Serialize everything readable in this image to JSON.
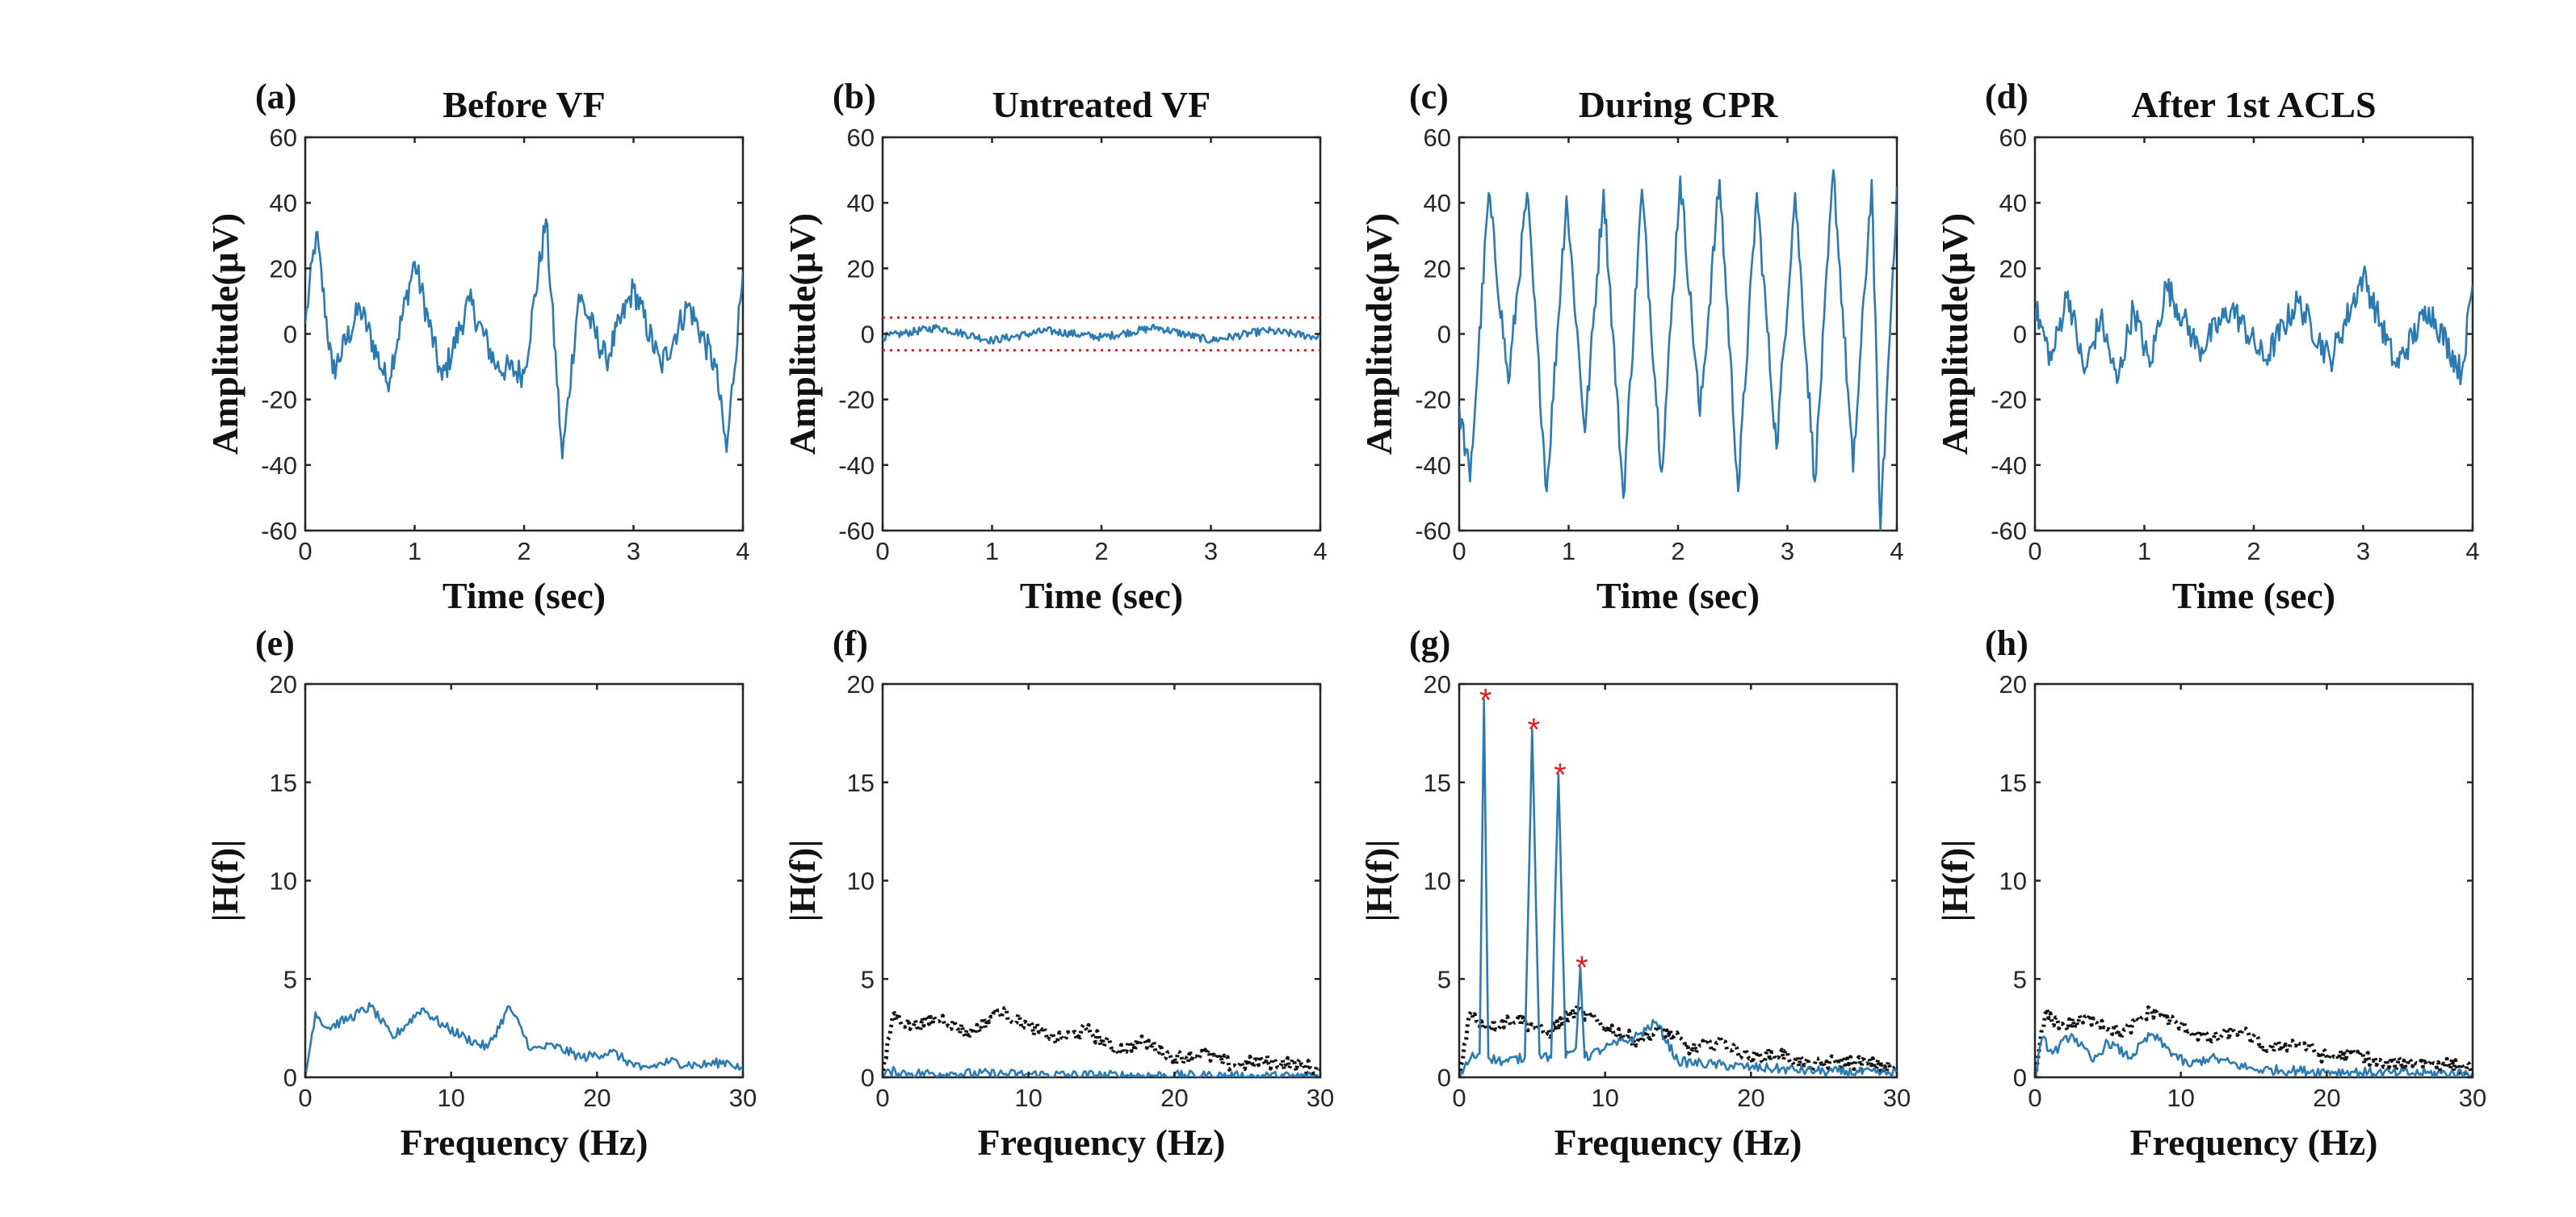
{
  "colors": {
    "signal": "#2a7ab4",
    "threshold": "#e41a1c",
    "background_spectrum": "#111111",
    "peak_marker": "#e41a1c"
  },
  "chart_data": [
    {
      "id": "a",
      "type": "line",
      "panel_label": "(a)",
      "title": "Before VF",
      "xlabel": "Time (sec)",
      "ylabel": "Amplitude(μV)",
      "xlim": [
        0,
        4
      ],
      "ylim": [
        -60,
        60
      ],
      "xticks": [
        "0",
        "1",
        "2",
        "3",
        "4"
      ],
      "yticks": [
        "-60",
        "-40",
        "-20",
        "0",
        "20",
        "40",
        "60"
      ],
      "series": [
        {
          "name": "ECG before VF",
          "style": "signal",
          "x": [
            0,
            0.1,
            0.25,
            0.5,
            0.75,
            1.0,
            1.25,
            1.5,
            1.75,
            2.0,
            2.2,
            2.35,
            2.5,
            2.75,
            3.0,
            3.25,
            3.5,
            3.75,
            3.85,
            4.0
          ],
          "y": [
            3,
            31,
            -12,
            8,
            -15,
            22,
            -14,
            10,
            -10,
            -12,
            35,
            -38,
            12,
            -8,
            14,
            -10,
            9,
            -10,
            -36,
            19
          ]
        }
      ]
    },
    {
      "id": "b",
      "type": "line",
      "panel_label": "(b)",
      "title": "Untreated VF",
      "xlabel": "Time (sec)",
      "ylabel": "Amplitude(μV)",
      "xlim": [
        0,
        4
      ],
      "ylim": [
        -60,
        60
      ],
      "xticks": [
        "0",
        "1",
        "2",
        "3",
        "4"
      ],
      "yticks": [
        "-60",
        "-40",
        "-20",
        "0",
        "20",
        "40",
        "60"
      ],
      "series": [
        {
          "name": "Untreated VF",
          "style": "signal",
          "x": [
            0,
            0.5,
            1.0,
            1.5,
            2.0,
            2.5,
            3.0,
            3.5,
            4.0
          ],
          "y": [
            -1,
            2,
            -2,
            1,
            -1,
            2,
            -2,
            1,
            -1
          ]
        }
      ],
      "reference_lines": [
        {
          "name": "upper threshold",
          "y": 5
        },
        {
          "name": "lower threshold",
          "y": -5
        }
      ]
    },
    {
      "id": "c",
      "type": "line",
      "panel_label": "(c)",
      "title": "During CPR",
      "xlabel": "Time (sec)",
      "ylabel": "Amplitude(μV)",
      "xlim": [
        0,
        4
      ],
      "ylim": [
        -60,
        60
      ],
      "xticks": [
        "0",
        "1",
        "2",
        "3",
        "4"
      ],
      "yticks": [
        "-60",
        "-40",
        "-20",
        "0",
        "20",
        "40",
        "60"
      ],
      "series": [
        {
          "name": "ECG during CPR",
          "style": "signal",
          "x": [
            0,
            0.1,
            0.27,
            0.45,
            0.62,
            0.8,
            0.98,
            1.15,
            1.32,
            1.5,
            1.67,
            1.85,
            2.02,
            2.2,
            2.38,
            2.55,
            2.72,
            2.9,
            3.07,
            3.25,
            3.42,
            3.6,
            3.77,
            3.85,
            4.0
          ],
          "y": [
            -22,
            -45,
            43,
            -15,
            43,
            -48,
            42,
            -30,
            44,
            -50,
            44,
            -42,
            48,
            -25,
            47,
            -48,
            43,
            -35,
            43,
            -45,
            50,
            -42,
            47,
            -60,
            45
          ]
        }
      ]
    },
    {
      "id": "d",
      "type": "line",
      "panel_label": "(d)",
      "title": "After 1st ACLS",
      "xlabel": "Time (sec)",
      "ylabel": "Amplitude(μV)",
      "xlim": [
        0,
        4
      ],
      "ylim": [
        -60,
        60
      ],
      "xticks": [
        "0",
        "1",
        "2",
        "3",
        "4"
      ],
      "yticks": [
        "-60",
        "-40",
        "-20",
        "0",
        "20",
        "40",
        "60"
      ],
      "series": [
        {
          "name": "ECG after 1st ACLS",
          "style": "signal",
          "x": [
            0,
            0.15,
            0.3,
            0.45,
            0.6,
            0.75,
            0.9,
            1.05,
            1.2,
            1.35,
            1.5,
            1.8,
            2.1,
            2.4,
            2.7,
            3.0,
            3.3,
            3.6,
            3.9,
            4.0
          ],
          "y": [
            8,
            -8,
            13,
            -12,
            5,
            -15,
            8,
            -10,
            15,
            5,
            -5,
            8,
            -8,
            10,
            -8,
            18,
            -10,
            8,
            -12,
            15
          ]
        }
      ]
    },
    {
      "id": "e",
      "type": "line",
      "panel_label": "(e)",
      "title": "",
      "xlabel": "Frequency (Hz)",
      "ylabel": "|H(f)|",
      "xlim": [
        0,
        30
      ],
      "ylim": [
        0,
        20
      ],
      "xticks": [
        "0",
        "10",
        "20",
        "30"
      ],
      "yticks": [
        "0",
        "5",
        "10",
        "15",
        "20"
      ],
      "series": [
        {
          "name": "Spectrum before VF",
          "style": "signal",
          "x": [
            0,
            0.7,
            1.5,
            3,
            4.5,
            6,
            8,
            9.5,
            11,
            12.5,
            14,
            15.5,
            17,
            19,
            21,
            23,
            25,
            27,
            29,
            30
          ],
          "y": [
            0,
            3.3,
            2.5,
            3.0,
            3.6,
            2.0,
            3.5,
            2.6,
            2.0,
            1.5,
            3.6,
            1.4,
            1.6,
            1.0,
            1.3,
            0.4,
            0.8,
            0.6,
            0.8,
            0.4
          ]
        }
      ]
    },
    {
      "id": "f",
      "type": "line",
      "panel_label": "(f)",
      "title": "",
      "xlabel": "Frequency (Hz)",
      "ylabel": "|H(f)|",
      "xlim": [
        0,
        30
      ],
      "ylim": [
        0,
        20
      ],
      "xticks": [
        "0",
        "10",
        "20",
        "30"
      ],
      "yticks": [
        "0",
        "5",
        "10",
        "15",
        "20"
      ],
      "series": [
        {
          "name": "Untreated VF spectrum",
          "style": "signal",
          "x": [
            0,
            0.5,
            2,
            5,
            10,
            15,
            20,
            25,
            30
          ],
          "y": [
            0,
            0.3,
            0.2,
            0.2,
            0.15,
            0.1,
            0.1,
            0.05,
            0.05
          ]
        },
        {
          "name": "Reference spectrum",
          "style": "dotted",
          "x": [
            0,
            0.7,
            2,
            4,
            6,
            8,
            10,
            12,
            14,
            16,
            18,
            20,
            22,
            24,
            26,
            28,
            30
          ],
          "y": [
            0,
            3.2,
            2.6,
            3.0,
            2.2,
            3.4,
            2.6,
            1.9,
            2.4,
            1.4,
            1.8,
            1.0,
            1.2,
            0.6,
            0.8,
            0.7,
            0.4
          ]
        }
      ]
    },
    {
      "id": "g",
      "type": "line",
      "panel_label": "(g)",
      "title": "",
      "xlabel": "Frequency (Hz)",
      "ylabel": "|H(f)|",
      "xlim": [
        0,
        30
      ],
      "ylim": [
        0,
        20
      ],
      "xticks": [
        "0",
        "10",
        "20",
        "30"
      ],
      "yticks": [
        "0",
        "5",
        "10",
        "15",
        "20"
      ],
      "series": [
        {
          "name": "Spectrum during CPR",
          "style": "signal",
          "x": [
            0,
            0.8,
            1.4,
            1.7,
            2.0,
            3.0,
            4.5,
            5.0,
            5.5,
            6.3,
            6.8,
            7.3,
            8.0,
            8.3,
            8.6,
            10,
            12,
            13.5,
            15,
            20,
            25,
            30
          ],
          "y": [
            0,
            1.0,
            1.2,
            19.2,
            1.0,
            0.8,
            1.0,
            17.7,
            1.2,
            1.0,
            15.4,
            1.0,
            1.5,
            5.6,
            1.0,
            1.5,
            2.0,
            2.8,
            0.8,
            0.5,
            0.3,
            0.2
          ]
        },
        {
          "name": "Reference spectrum",
          "style": "dotted",
          "x": [
            0,
            0.7,
            2,
            4,
            6,
            8,
            10,
            12,
            14,
            16,
            18,
            20,
            22,
            24,
            26,
            28,
            30
          ],
          "y": [
            0,
            3.2,
            2.6,
            3.0,
            2.2,
            3.4,
            2.6,
            1.9,
            2.4,
            1.4,
            1.8,
            1.0,
            1.2,
            0.6,
            0.8,
            0.7,
            0.4
          ]
        }
      ],
      "markers": [
        {
          "label": "*",
          "x": 1.7,
          "y": 19.2
        },
        {
          "label": "*",
          "x": 5.0,
          "y": 17.7
        },
        {
          "label": "*",
          "x": 6.8,
          "y": 15.4
        },
        {
          "label": "*",
          "x": 8.3,
          "y": 5.6
        }
      ]
    },
    {
      "id": "h",
      "type": "line",
      "panel_label": "(h)",
      "title": "",
      "xlabel": "Frequency (Hz)",
      "ylabel": "|H(f)|",
      "xlim": [
        0,
        30
      ],
      "ylim": [
        0,
        20
      ],
      "xticks": [
        "0",
        "10",
        "20",
        "30"
      ],
      "yticks": [
        "0",
        "5",
        "10",
        "15",
        "20"
      ],
      "series": [
        {
          "name": "Spectrum after 1st ACLS",
          "style": "signal",
          "x": [
            0,
            0.5,
            1.2,
            2.5,
            4,
            5,
            6.5,
            8,
            9,
            10.5,
            12,
            15,
            20,
            25,
            30
          ],
          "y": [
            0,
            2.0,
            1.2,
            2.2,
            0.8,
            1.8,
            1.0,
            2.2,
            1.5,
            0.6,
            1.0,
            0.4,
            0.3,
            0.2,
            0.2
          ]
        },
        {
          "name": "Reference spectrum",
          "style": "dotted",
          "x": [
            0,
            0.7,
            2,
            4,
            6,
            8,
            10,
            12,
            14,
            16,
            18,
            20,
            22,
            24,
            26,
            28,
            30
          ],
          "y": [
            0,
            3.2,
            2.6,
            3.0,
            2.2,
            3.4,
            2.6,
            1.9,
            2.4,
            1.4,
            1.8,
            1.0,
            1.2,
            0.6,
            0.8,
            0.7,
            0.4
          ]
        }
      ]
    }
  ]
}
